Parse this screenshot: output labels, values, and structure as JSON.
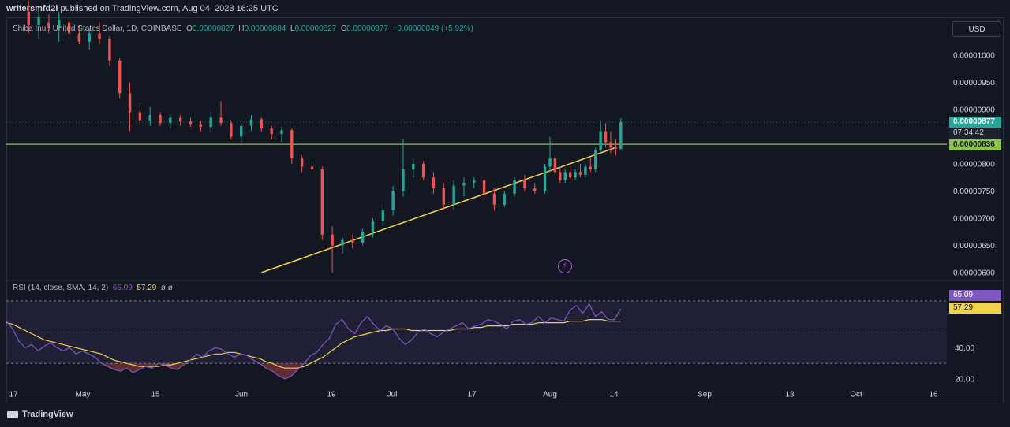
{
  "header": {
    "publisher": "writersmfd2i",
    "published_text": " published on TradingView.com, Aug 04, 2023 16:25 UTC"
  },
  "legend": {
    "symbol": "Shiba Inu / United States Dollar, 1D, COINBASE",
    "o_label": "O",
    "o_value": "0.00000827",
    "h_label": "H",
    "h_value": "0.00000884",
    "l_label": "L",
    "l_value": "0.00000827",
    "c_label": "C",
    "c_value": "0.00000877",
    "change": "+0.00000049 (+5.92%)"
  },
  "currency_button": "USD",
  "price_tags": {
    "last_price": "0.00000877",
    "countdown": "07:34:42",
    "line_price": "0.00000836"
  },
  "rsi_legend": {
    "label": "RSI (14, close, SMA, 14, 2)",
    "rsi_value": "65.09",
    "sma_value": "57.29",
    "extra": "ø ø"
  },
  "rsi_tags": {
    "rsi": "65.09",
    "sma": "57.29"
  },
  "footer": {
    "brand": "TradingView"
  },
  "colors": {
    "up": "#26a69a",
    "down": "#ef5350",
    "support_line": "#8bc34a",
    "trendline": "#f2d24b",
    "rsi": "#7e57c2",
    "rsi_sma": "#f2d24b",
    "background": "#131722"
  },
  "chart_data": [
    {
      "type": "candlestick",
      "title": "Shiba Inu / United States Dollar, 1D, COINBASE",
      "y_ticks": [
        "0.00001000",
        "0.00000950",
        "0.00000900",
        "0.00000850",
        "0.00000800",
        "0.00000750",
        "0.00000700",
        "0.00000650",
        "0.00000600"
      ],
      "x_ticks": [
        "17",
        "May",
        "15",
        "Jun",
        "19",
        "Jul",
        "17",
        "Aug",
        "14",
        "Sep",
        "18",
        "Oct",
        "16"
      ],
      "ylim": [
        5.8e-06,
        1.06e-05
      ],
      "horizontal_line": 8.36e-06,
      "trendline": {
        "from": [
          "2023-06-05",
          6e-06
        ],
        "to": [
          "2023-08-14",
          8.3e-06
        ]
      },
      "candles": [
        [
          "2023-04-20",
          1.08e-05,
          1.1e-05,
          1.04e-05,
          1.055e-05
        ],
        [
          "2023-04-22",
          1.055e-05,
          1.085e-05,
          1.03e-05,
          1.07e-05
        ],
        [
          "2023-04-24",
          1.06e-05,
          1.075e-05,
          1.04e-05,
          1.05e-05
        ],
        [
          "2023-04-26",
          1.05e-05,
          1.08e-05,
          1.025e-05,
          1.065e-05
        ],
        [
          "2023-04-28",
          1.06e-05,
          1.07e-05,
          1.03e-05,
          1.04e-05
        ],
        [
          "2023-04-30",
          1.04e-05,
          1.055e-05,
          1.02e-05,
          1.025e-05
        ],
        [
          "2023-05-02",
          1.025e-05,
          1.05e-05,
          1.01e-05,
          1.04e-05
        ],
        [
          "2023-05-04",
          1.04e-05,
          1.06e-05,
          1.02e-05,
          1.03e-05
        ],
        [
          "2023-05-06",
          1.03e-05,
          1.035e-05,
          9.8e-06,
          9.9e-06
        ],
        [
          "2023-05-08",
          9.9e-06,
          9.95e-06,
          9.2e-06,
          9.3e-06
        ],
        [
          "2023-05-10",
          9.3e-06,
          9.5e-06,
          8.6e-06,
          8.95e-06
        ],
        [
          "2023-05-12",
          8.95e-06,
          9.15e-06,
          8.7e-06,
          8.8e-06
        ],
        [
          "2023-05-14",
          8.8e-06,
          9.05e-06,
          8.7e-06,
          8.9e-06
        ],
        [
          "2023-05-16",
          8.9e-06,
          8.95e-06,
          8.7e-06,
          8.75e-06
        ],
        [
          "2023-05-18",
          8.75e-06,
          8.9e-06,
          8.65e-06,
          8.85e-06
        ],
        [
          "2023-05-20",
          8.85e-06,
          8.9e-06,
          8.7e-06,
          8.78e-06
        ],
        [
          "2023-05-22",
          8.78e-06,
          8.85e-06,
          8.68e-06,
          8.72e-06
        ],
        [
          "2023-05-24",
          8.72e-06,
          8.8e-06,
          8.6e-06,
          8.68e-06
        ],
        [
          "2023-05-26",
          8.68e-06,
          8.95e-06,
          8.6e-06,
          8.85e-06
        ],
        [
          "2023-05-28",
          8.85e-06,
          9.15e-06,
          8.7e-06,
          8.75e-06
        ],
        [
          "2023-05-30",
          8.75e-06,
          8.8e-06,
          8.45e-06,
          8.5e-06
        ],
        [
          "2023-06-01",
          8.5e-06,
          8.75e-06,
          8.4e-06,
          8.7e-06
        ],
        [
          "2023-06-03",
          8.7e-06,
          8.9e-06,
          8.6e-06,
          8.82e-06
        ],
        [
          "2023-06-05",
          8.82e-06,
          8.85e-06,
          8.6e-06,
          8.65e-06
        ],
        [
          "2023-06-07",
          8.65e-06,
          8.7e-06,
          8.45e-06,
          8.55e-06
        ],
        [
          "2023-06-09",
          8.55e-06,
          8.68e-06,
          8.4e-06,
          8.62e-06
        ],
        [
          "2023-06-11",
          8.62e-06,
          8.65e-06,
          8e-06,
          8.1e-06
        ],
        [
          "2023-06-13",
          8.1e-06,
          8.15e-06,
          7.85e-06,
          7.95e-06
        ],
        [
          "2023-06-15",
          7.95e-06,
          8.05e-06,
          7.8e-06,
          7.9e-06
        ],
        [
          "2023-06-17",
          7.9e-06,
          7.95e-06,
          6.6e-06,
          6.7e-06
        ],
        [
          "2023-06-19",
          6.7e-06,
          6.85e-06,
          6e-06,
          6.5e-06
        ],
        [
          "2023-06-21",
          6.5e-06,
          6.65e-06,
          6.35e-06,
          6.6e-06
        ],
        [
          "2023-06-23",
          6.6e-06,
          6.7e-06,
          6.45e-06,
          6.55e-06
        ],
        [
          "2023-06-25",
          6.55e-06,
          6.8e-06,
          6.5e-06,
          6.75e-06
        ],
        [
          "2023-06-27",
          6.75e-06,
          7e-06,
          6.65e-06,
          6.95e-06
        ],
        [
          "2023-06-29",
          6.95e-06,
          7.25e-06,
          6.85e-06,
          7.15e-06
        ],
        [
          "2023-07-01",
          7.15e-06,
          7.6e-06,
          7.05e-06,
          7.5e-06
        ],
        [
          "2023-07-03",
          7.5e-06,
          8.45e-06,
          7.4e-06,
          7.9e-06
        ],
        [
          "2023-07-05",
          7.9e-06,
          8.1e-06,
          7.75e-06,
          8e-06
        ],
        [
          "2023-07-07",
          8e-06,
          8.05e-06,
          7.7e-06,
          7.75e-06
        ],
        [
          "2023-07-09",
          7.75e-06,
          7.85e-06,
          7.45e-06,
          7.55e-06
        ],
        [
          "2023-07-11",
          7.55e-06,
          7.65e-06,
          7.15e-06,
          7.25e-06
        ],
        [
          "2023-07-13",
          7.25e-06,
          7.7e-06,
          7.15e-06,
          7.6e-06
        ],
        [
          "2023-07-15",
          7.6e-06,
          7.75e-06,
          7.4e-06,
          7.65e-06
        ],
        [
          "2023-07-17",
          7.65e-06,
          7.75e-06,
          7.55e-06,
          7.7e-06
        ],
        [
          "2023-07-19",
          7.7e-06,
          7.75e-06,
          7.35e-06,
          7.45e-06
        ],
        [
          "2023-07-21",
          7.45e-06,
          7.55e-06,
          7.15e-06,
          7.25e-06
        ],
        [
          "2023-07-23",
          7.25e-06,
          7.5e-06,
          7.2e-06,
          7.45e-06
        ],
        [
          "2023-07-25",
          7.45e-06,
          7.75e-06,
          7.4e-06,
          7.7e-06
        ],
        [
          "2023-07-27",
          7.7e-06,
          7.8e-06,
          7.5e-06,
          7.55e-06
        ],
        [
          "2023-07-29",
          7.55e-06,
          7.65e-06,
          7.45e-06,
          7.5e-06
        ],
        [
          "2023-07-31",
          7.5e-06,
          8e-06,
          7.45e-06,
          7.95e-06
        ],
        [
          "2023-08-01",
          7.95e-06,
          8.5e-06,
          7.85e-06,
          8.1e-06
        ],
        [
          "2023-08-02",
          8.1e-06,
          8.15e-06,
          7.8e-06,
          7.85e-06
        ],
        [
          "2023-08-03",
          7.85e-06,
          7.95e-06,
          7.65e-06,
          7.7e-06
        ],
        [
          "2023-08-04",
          7.7e-06,
          7.9e-06,
          7.65e-06,
          7.85e-06
        ],
        [
          "2023-08-05",
          7.85e-06,
          7.95e-06,
          7.7e-06,
          7.75e-06
        ],
        [
          "2023-08-06",
          7.75e-06,
          7.9e-06,
          7.7e-06,
          7.85e-06
        ],
        [
          "2023-08-07",
          7.85e-06,
          8e-06,
          7.75e-06,
          7.8e-06
        ],
        [
          "2023-08-08",
          7.8e-06,
          8e-06,
          7.75e-06,
          7.95e-06
        ],
        [
          "2023-08-09",
          7.95e-06,
          8.1e-06,
          7.85e-06,
          7.9e-06
        ],
        [
          "2023-08-10",
          7.9e-06,
          8.3e-06,
          7.85e-06,
          8.25e-06
        ],
        [
          "2023-08-11",
          8.25e-06,
          8.8e-06,
          8.2e-06,
          8.6e-06
        ],
        [
          "2023-08-12",
          8.6e-06,
          8.75e-06,
          8.3e-06,
          8.4e-06
        ],
        [
          "2023-08-13",
          8.4e-06,
          8.6e-06,
          8.2e-06,
          8.3e-06
        ],
        [
          "2023-08-14",
          8.3e-06,
          8.45e-06,
          8.15e-06,
          8.28e-06
        ],
        [
          "2023-08-15",
          8.27e-06,
          8.84e-06,
          8.27e-06,
          8.77e-06
        ]
      ]
    },
    {
      "type": "line",
      "title": "RSI (14, close, SMA, 14, 2)",
      "y_ticks": [
        "40.00",
        "20.00"
      ],
      "ylim": [
        17,
        82
      ],
      "bands": [
        70,
        30
      ],
      "series": [
        {
          "name": "RSI",
          "values": [
            57,
            52,
            44,
            40,
            42,
            38,
            41,
            43,
            40,
            38,
            40,
            36,
            38,
            36,
            34,
            30,
            28,
            26,
            25,
            27,
            24,
            26,
            28,
            27,
            30,
            29,
            27,
            26,
            29,
            32,
            36,
            34,
            38,
            40,
            39,
            36,
            34,
            36,
            35,
            32,
            30,
            27,
            25,
            22,
            20,
            22,
            26,
            30,
            35,
            37,
            42,
            46,
            55,
            58,
            52,
            49,
            56,
            60,
            55,
            51,
            54,
            52,
            46,
            42,
            45,
            50,
            52,
            49,
            47,
            50,
            52,
            54,
            56,
            52,
            54,
            55,
            58,
            57,
            55,
            52,
            57,
            58,
            55,
            56,
            60,
            56,
            59,
            58,
            57,
            64,
            67,
            62,
            68,
            60,
            63,
            58,
            58,
            65
          ]
        },
        {
          "name": "SMA",
          "values": [
            56,
            55,
            53,
            51,
            49,
            47,
            45,
            44,
            43,
            42,
            41,
            40,
            39,
            38,
            37,
            36,
            34,
            32,
            31,
            30,
            29,
            28,
            28,
            28,
            28,
            29,
            29,
            30,
            31,
            32,
            33,
            34,
            35,
            36,
            36,
            37,
            37,
            36,
            35,
            34,
            33,
            31,
            30,
            28,
            27,
            27,
            27,
            28,
            30,
            32,
            34,
            37,
            40,
            43,
            45,
            47,
            48,
            49,
            50,
            51,
            51,
            52,
            52,
            52,
            51,
            51,
            51,
            51,
            51,
            51,
            51,
            52,
            52,
            52,
            53,
            53,
            54,
            54,
            54,
            54,
            55,
            55,
            55,
            55,
            56,
            56,
            56,
            56,
            56,
            57,
            57,
            57,
            58,
            58,
            58,
            57,
            57,
            57
          ]
        }
      ]
    }
  ]
}
